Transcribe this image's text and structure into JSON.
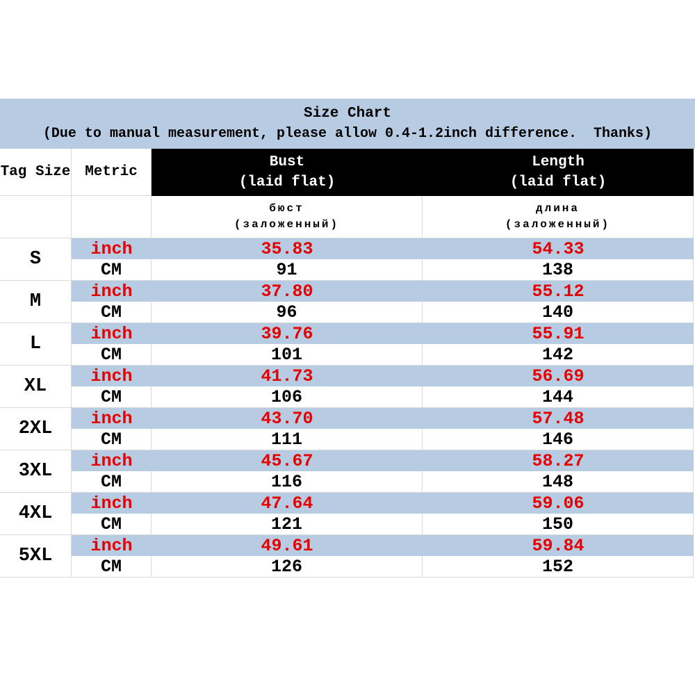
{
  "title": {
    "heading": "Size Chart",
    "note": "(Due to manual measurement, please allow 0.4-1.2inch difference.  Thanks)"
  },
  "colors": {
    "band_blue": "#b7cbe3",
    "row_blue": "#b7cbe3",
    "inch_red": "#e60000",
    "grid_gray": "#d9d9d9",
    "header_black": "#000000"
  },
  "table": {
    "columns": {
      "tag_size": "Tag Size",
      "metric": "Metric",
      "bust": {
        "en_line1": "Bust",
        "en_line2": "(laid flat)",
        "ru_line1": "бюст",
        "ru_line2": "(заложенный)"
      },
      "length": {
        "en_line1": "Length",
        "en_line2": "(laid flat)",
        "ru_line1": "длина",
        "ru_line2": "(заложенный)"
      }
    },
    "unit_labels": {
      "inch": "inch",
      "cm": "CM"
    },
    "sizes": [
      {
        "label": "S",
        "inch": {
          "bust": "35.83",
          "length": "54.33"
        },
        "cm": {
          "bust": "91",
          "length": "138"
        }
      },
      {
        "label": "M",
        "inch": {
          "bust": "37.80",
          "length": "55.12"
        },
        "cm": {
          "bust": "96",
          "length": "140"
        }
      },
      {
        "label": "L",
        "inch": {
          "bust": "39.76",
          "length": "55.91"
        },
        "cm": {
          "bust": "101",
          "length": "142"
        }
      },
      {
        "label": "XL",
        "inch": {
          "bust": "41.73",
          "length": "56.69"
        },
        "cm": {
          "bust": "106",
          "length": "144"
        }
      },
      {
        "label": "2XL",
        "inch": {
          "bust": "43.70",
          "length": "57.48"
        },
        "cm": {
          "bust": "111",
          "length": "146"
        }
      },
      {
        "label": "3XL",
        "inch": {
          "bust": "45.67",
          "length": "58.27"
        },
        "cm": {
          "bust": "116",
          "length": "148"
        }
      },
      {
        "label": "4XL",
        "inch": {
          "bust": "47.64",
          "length": "59.06"
        },
        "cm": {
          "bust": "121",
          "length": "150"
        }
      },
      {
        "label": "5XL",
        "inch": {
          "bust": "49.61",
          "length": "59.84"
        },
        "cm": {
          "bust": "126",
          "length": "152"
        }
      }
    ]
  }
}
